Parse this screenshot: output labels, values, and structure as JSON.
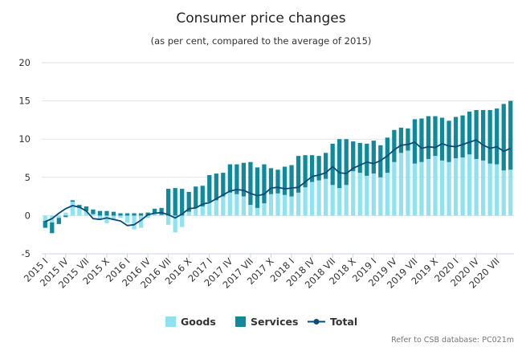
{
  "chart_data": {
    "type": "bar",
    "title": "Consumer price changes",
    "subtitle": "(as per cent, compared to the average of 2015)",
    "credit": "Refer to CSB database: PC021m",
    "xlabel": "",
    "ylabel": "",
    "ylim": [
      -5,
      20
    ],
    "yticks": [
      -5,
      0,
      5,
      10,
      15,
      20
    ],
    "grid": true,
    "legend": "bottom",
    "stacked": true,
    "colors": {
      "goods": "#8fe3f1",
      "services": "#0f8a9d",
      "total": "#0a4a75"
    },
    "tick_labels": [
      "2015 I",
      "2015 IV",
      "2015 VII",
      "2015 X",
      "2016 I",
      "2016 IV",
      "2016 VII",
      "2016 X",
      "2017 I",
      "2017 IV",
      "2017 VII",
      "2017 X",
      "2018 I",
      "2018 IV",
      "2018 VII",
      "2018 X",
      "2019 I",
      "2019 IV",
      "2019 VII",
      "2019 X",
      "2020 I",
      "2020 IV",
      "2020 VII"
    ],
    "categories": [
      "2015 I",
      "2015 II",
      "2015 III",
      "2015 IV",
      "2015 V",
      "2015 VI",
      "2015 VII",
      "2015 VIII",
      "2015 IX",
      "2015 X",
      "2015 XI",
      "2015 XII",
      "2016 I",
      "2016 II",
      "2016 III",
      "2016 IV",
      "2016 V",
      "2016 VI",
      "2016 VII",
      "2016 VIII",
      "2016 IX",
      "2016 X",
      "2016 XI",
      "2016 XII",
      "2017 I",
      "2017 II",
      "2017 III",
      "2017 IV",
      "2017 V",
      "2017 VI",
      "2017 VII",
      "2017 VIII",
      "2017 IX",
      "2017 X",
      "2017 XI",
      "2017 XII",
      "2018 I",
      "2018 II",
      "2018 III",
      "2018 IV",
      "2018 V",
      "2018 VI",
      "2018 VII",
      "2018 VIII",
      "2018 IX",
      "2018 X",
      "2018 XI",
      "2018 XII",
      "2019 I",
      "2019 II",
      "2019 III",
      "2019 IV",
      "2019 V",
      "2019 VI",
      "2019 VII",
      "2019 VIII",
      "2019 IX",
      "2019 X",
      "2019 XI",
      "2019 XII",
      "2020 I",
      "2020 II",
      "2020 III",
      "2020 IV",
      "2020 V",
      "2020 VI",
      "2020 VII",
      "2020 VIII",
      "2020 IX"
    ],
    "series": [
      {
        "name": "Goods",
        "values": [
          -0.7,
          -0.9,
          -0.3,
          0.4,
          1.8,
          1.0,
          0.6,
          0.2,
          -0.5,
          -1.0,
          -0.6,
          -0.3,
          -0.9,
          -1.8,
          -1.6,
          -0.3,
          0.3,
          0.1,
          -1.2,
          -2.2,
          -1.5,
          0.5,
          1.0,
          1.2,
          1.8,
          2.0,
          2.5,
          3.0,
          2.8,
          2.5,
          1.4,
          1.0,
          1.6,
          2.8,
          2.9,
          2.7,
          2.5,
          3.0,
          3.7,
          4.4,
          4.6,
          4.8,
          4.0,
          3.6,
          4.0,
          5.8,
          5.6,
          5.2,
          5.5,
          5.0,
          5.6,
          7.0,
          8.2,
          8.5,
          6.8,
          7.0,
          7.4,
          7.8,
          7.2,
          7.0,
          7.5,
          7.6,
          8.0,
          7.4,
          7.2,
          6.8,
          6.7,
          5.9,
          6.0
        ]
      },
      {
        "name": "Services",
        "values": [
          -0.9,
          -1.4,
          -0.8,
          -0.2,
          0.2,
          0.4,
          0.6,
          0.6,
          0.6,
          0.6,
          0.5,
          0.3,
          0.3,
          0.3,
          0.3,
          0.4,
          0.6,
          0.9,
          3.5,
          3.6,
          3.5,
          2.6,
          2.8,
          2.7,
          3.5,
          3.5,
          3.1,
          3.7,
          3.9,
          4.4,
          5.6,
          5.3,
          5.1,
          3.4,
          3.1,
          3.7,
          4.1,
          4.8,
          4.2,
          3.5,
          3.2,
          3.4,
          5.4,
          6.4,
          6.0,
          3.9,
          3.9,
          4.2,
          4.3,
          4.2,
          4.6,
          4.2,
          3.3,
          2.9,
          5.8,
          5.7,
          5.6,
          5.2,
          5.6,
          5.4,
          5.4,
          5.5,
          5.6,
          6.4,
          6.6,
          7.0,
          7.3,
          8.7,
          9.0
        ]
      },
      {
        "name": "Total",
        "values": [
          -0.8,
          -0.4,
          0.3,
          0.9,
          1.3,
          1.1,
          0.6,
          -0.4,
          -0.5,
          -0.3,
          -0.5,
          -0.7,
          -1.3,
          -1.2,
          -0.6,
          0.1,
          0.3,
          0.4,
          0.1,
          -0.3,
          0.2,
          0.9,
          1.0,
          1.5,
          1.7,
          2.2,
          2.7,
          3.2,
          3.4,
          3.3,
          2.9,
          2.6,
          2.8,
          3.6,
          3.7,
          3.5,
          3.6,
          3.7,
          4.4,
          5.1,
          5.3,
          5.6,
          6.4,
          5.6,
          5.5,
          6.2,
          6.6,
          7.0,
          6.8,
          7.2,
          7.8,
          8.6,
          9.2,
          9.3,
          9.6,
          8.8,
          9.0,
          8.9,
          9.4,
          9.1,
          9.0,
          9.3,
          9.6,
          9.9,
          9.2,
          8.8,
          9.0,
          8.4,
          8.8
        ]
      }
    ]
  }
}
